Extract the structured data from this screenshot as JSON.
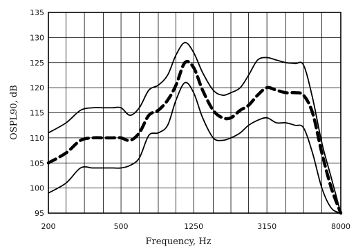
{
  "chart_data": {
    "type": "line",
    "title": "",
    "xlabel": "Frequency, Hz",
    "ylabel": "OSPL90, dB",
    "x_scale": "log",
    "xlim": [
      200,
      8000
    ],
    "ylim": [
      95,
      135
    ],
    "grid": true,
    "x_ticks": [
      "200",
      "500",
      "1250",
      "3150",
      "8000"
    ],
    "y_ticks": [
      "95",
      "100",
      "105",
      "110",
      "115",
      "120",
      "125",
      "130",
      "135"
    ],
    "series": [
      {
        "style": "solid",
        "x": [
          200,
          250,
          300,
          350,
          400,
          450,
          500,
          560,
          630,
          710,
          800,
          900,
          1000,
          1120,
          1250,
          1400,
          1600,
          1800,
          2000,
          2250,
          2500,
          2800,
          3150,
          3550,
          4000,
          4500,
          5000,
          5600,
          6300,
          7100,
          8000
        ],
        "values": [
          111,
          113,
          115.5,
          116,
          116,
          116,
          116,
          114.5,
          116,
          119.5,
          120.5,
          122.5,
          126.5,
          129,
          127,
          123,
          119.5,
          118.5,
          119,
          120,
          122.5,
          125.5,
          126,
          125.5,
          125,
          124.8,
          124.5,
          118,
          109,
          102,
          95
        ]
      },
      {
        "style": "dashed",
        "x": [
          200,
          250,
          300,
          350,
          400,
          450,
          500,
          560,
          630,
          710,
          800,
          900,
          1000,
          1120,
          1250,
          1400,
          1600,
          1800,
          2000,
          2250,
          2500,
          2800,
          3150,
          3550,
          4000,
          4500,
          5000,
          5600,
          6300,
          7100,
          8000
        ],
        "values": [
          105,
          107,
          109.5,
          110,
          110,
          110,
          110,
          109.5,
          111,
          114.5,
          115.5,
          117.5,
          120.5,
          125,
          124,
          119.5,
          115.5,
          114,
          114,
          115.5,
          116.5,
          118.5,
          120,
          119.5,
          119,
          119,
          118.5,
          115,
          107,
          100,
          95
        ]
      },
      {
        "style": "solid",
        "x": [
          200,
          250,
          300,
          350,
          400,
          450,
          500,
          560,
          630,
          710,
          800,
          900,
          1000,
          1120,
          1250,
          1400,
          1600,
          1800,
          2000,
          2250,
          2500,
          2800,
          3150,
          3550,
          4000,
          4500,
          5000,
          5600,
          6300,
          7100,
          8000
        ],
        "values": [
          99,
          101,
          104,
          104,
          104,
          104,
          104,
          104.5,
          106,
          110.5,
          111,
          112.5,
          117.5,
          121,
          119,
          114,
          110,
          109.5,
          110,
          111,
          112.5,
          113.5,
          114,
          113,
          113,
          112.5,
          112,
          107,
          100,
          96,
          95
        ]
      }
    ]
  }
}
